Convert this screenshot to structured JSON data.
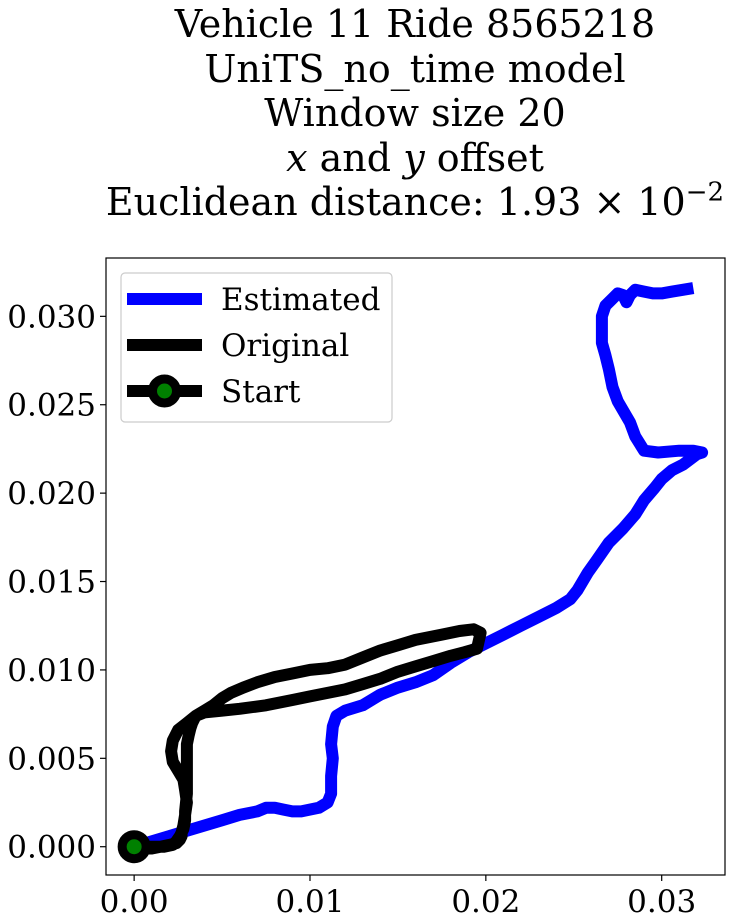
{
  "title": {
    "line1": "Vehicle 11 Ride 8565218",
    "line2": "UniTS_no_time model",
    "line3": "Window size 20",
    "line4_x": "x",
    "line4_and": " and ",
    "line4_y": "y",
    "line4_rest": " offset",
    "line5_prefix": "Euclidean distance: 1.93 × 10",
    "line5_exp": "−2"
  },
  "chart_data": {
    "type": "line",
    "title": "Vehicle 11 Ride 8565218 UniTS_no_time model Window size 20 x and y offset Euclidean distance: 1.93 × 10^-2",
    "xlabel": "",
    "ylabel": "",
    "xlim": [
      -0.0016,
      0.0336
    ],
    "ylim": [
      -0.0016,
      0.0333
    ],
    "grid": false,
    "legend_position": "upper-left",
    "xticks": [
      {
        "value": 0.0,
        "label": "0.00"
      },
      {
        "value": 0.01,
        "label": "0.01"
      },
      {
        "value": 0.02,
        "label": "0.02"
      },
      {
        "value": 0.03,
        "label": "0.03"
      }
    ],
    "yticks": [
      {
        "value": 0.0,
        "label": "0.000"
      },
      {
        "value": 0.005,
        "label": "0.005"
      },
      {
        "value": 0.01,
        "label": "0.010"
      },
      {
        "value": 0.015,
        "label": "0.015"
      },
      {
        "value": 0.02,
        "label": "0.020"
      },
      {
        "value": 0.025,
        "label": "0.025"
      },
      {
        "value": 0.03,
        "label": "0.030"
      }
    ],
    "series": [
      {
        "name": "Estimated",
        "color": "#0000ff",
        "x": [
          0.0,
          0.001,
          0.002,
          0.003,
          0.004,
          0.005,
          0.006,
          0.007,
          0.0075,
          0.008,
          0.0085,
          0.009,
          0.0095,
          0.0105,
          0.011,
          0.0112,
          0.0112,
          0.0113,
          0.0112,
          0.0113,
          0.0115,
          0.012,
          0.013,
          0.014,
          0.015,
          0.016,
          0.017,
          0.018,
          0.019,
          0.02,
          0.021,
          0.022,
          0.023,
          0.024,
          0.0248,
          0.0252,
          0.0258,
          0.0263,
          0.027,
          0.0278,
          0.0285,
          0.029,
          0.0296,
          0.03,
          0.0306,
          0.0312,
          0.032,
          0.0323,
          0.0318,
          0.031,
          0.0298,
          0.029,
          0.0285,
          0.0282,
          0.0275,
          0.0272,
          0.027,
          0.0268,
          0.0266,
          0.0266,
          0.0266,
          0.0268,
          0.0272,
          0.0275,
          0.0278,
          0.028,
          0.0282,
          0.0285,
          0.029,
          0.0295,
          0.03,
          0.0306,
          0.0312,
          0.0318
        ],
        "y": [
          0.0,
          0.0003,
          0.0006,
          0.0009,
          0.0012,
          0.0015,
          0.0018,
          0.002,
          0.0022,
          0.0022,
          0.0021,
          0.002,
          0.002,
          0.0022,
          0.0025,
          0.003,
          0.004,
          0.005,
          0.0058,
          0.0068,
          0.0074,
          0.0077,
          0.008,
          0.0086,
          0.009,
          0.0093,
          0.0097,
          0.0104,
          0.011,
          0.0115,
          0.012,
          0.0125,
          0.013,
          0.0135,
          0.014,
          0.0145,
          0.0155,
          0.0162,
          0.0172,
          0.018,
          0.0188,
          0.0196,
          0.0203,
          0.0208,
          0.0213,
          0.0216,
          0.0222,
          0.0223,
          0.0224,
          0.0224,
          0.0223,
          0.0224,
          0.0232,
          0.024,
          0.0252,
          0.026,
          0.027,
          0.0278,
          0.0285,
          0.0293,
          0.03,
          0.0306,
          0.031,
          0.0313,
          0.0312,
          0.0308,
          0.0312,
          0.0315,
          0.0314,
          0.0313,
          0.0313,
          0.0314,
          0.0315,
          0.0316
        ]
      },
      {
        "name": "Original",
        "color": "#000000",
        "x": [
          0.0,
          0.001,
          0.0017,
          0.0022,
          0.0024,
          0.0026,
          0.0028,
          0.0029,
          0.0029,
          0.003,
          0.003,
          0.003,
          0.003,
          0.0031,
          0.0032,
          0.0033,
          0.0035,
          0.004,
          0.005,
          0.006,
          0.0075,
          0.009,
          0.01,
          0.011,
          0.012,
          0.013,
          0.014,
          0.015,
          0.016,
          0.017,
          0.018,
          0.0188,
          0.0195,
          0.0197,
          0.0193,
          0.0185,
          0.0175,
          0.016,
          0.015,
          0.014,
          0.013,
          0.012,
          0.011,
          0.01,
          0.009,
          0.008,
          0.007,
          0.0062,
          0.0055,
          0.005,
          0.0045,
          0.004,
          0.0035,
          0.003,
          0.0025,
          0.0022,
          0.0021,
          0.0022,
          0.0025,
          0.0028,
          0.0029,
          0.003,
          0.0029,
          0.0028,
          0.0027,
          0.0027,
          0.0026,
          0.0024,
          0.002,
          0.0015,
          0.001,
          0.0005,
          0.0
        ],
        "y": [
          0.0,
          0.0,
          0.0,
          0.0001,
          0.0003,
          0.0006,
          0.001,
          0.0015,
          0.002,
          0.003,
          0.004,
          0.005,
          0.0058,
          0.0063,
          0.0067,
          0.007,
          0.0074,
          0.0076,
          0.0077,
          0.0078,
          0.008,
          0.0083,
          0.0085,
          0.0087,
          0.0089,
          0.0092,
          0.0095,
          0.0099,
          0.0102,
          0.0105,
          0.0108,
          0.011,
          0.0112,
          0.0121,
          0.0123,
          0.0122,
          0.012,
          0.0117,
          0.0114,
          0.0111,
          0.0107,
          0.0103,
          0.0101,
          0.01,
          0.0098,
          0.0096,
          0.0093,
          0.009,
          0.0087,
          0.0084,
          0.008,
          0.0077,
          0.0074,
          0.007,
          0.0066,
          0.006,
          0.0054,
          0.0048,
          0.0043,
          0.0038,
          0.0032,
          0.0025,
          0.0018,
          0.0012,
          0.0008,
          0.0006,
          0.0004,
          0.0002,
          0.0001,
          0.0,
          -0.0001,
          -0.0001,
          0.0
        ]
      }
    ],
    "start_point": {
      "x": 0.0,
      "y": 0.0,
      "label": "Start",
      "edge_color": "#000000",
      "fill_color": "#008000"
    },
    "legend": [
      {
        "label": "Estimated",
        "color": "#0000ff",
        "marker": false
      },
      {
        "label": "Original",
        "color": "#000000",
        "marker": false
      },
      {
        "label": "Start",
        "color": "#000000",
        "marker": true,
        "marker_fill": "#008000"
      }
    ]
  }
}
